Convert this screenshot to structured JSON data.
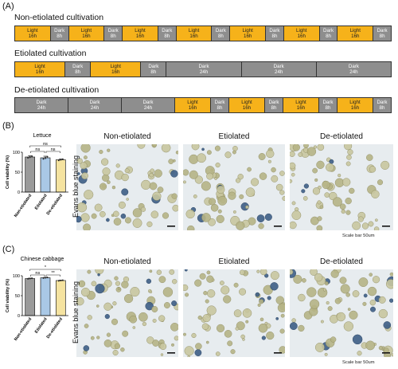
{
  "panelA": {
    "label": "(A)",
    "rows": [
      {
        "title": "Non-etiolated cultivation",
        "segments": [
          {
            "type": "light",
            "l1": "Light",
            "l2": "16h"
          },
          {
            "type": "dark",
            "l1": "Dark",
            "l2": "8h"
          },
          {
            "type": "light",
            "l1": "Light",
            "l2": "16h"
          },
          {
            "type": "dark",
            "l1": "Dark",
            "l2": "8h"
          },
          {
            "type": "light",
            "l1": "Light",
            "l2": "16h"
          },
          {
            "type": "dark",
            "l1": "Dark",
            "l2": "8h"
          },
          {
            "type": "light",
            "l1": "Light",
            "l2": "16h"
          },
          {
            "type": "dark",
            "l1": "Dark",
            "l2": "8h"
          },
          {
            "type": "light",
            "l1": "Light",
            "l2": "16h"
          },
          {
            "type": "dark",
            "l1": "Dark",
            "l2": "8h"
          },
          {
            "type": "light",
            "l1": "Light",
            "l2": "16h"
          },
          {
            "type": "dark",
            "l1": "Dark",
            "l2": "8h"
          },
          {
            "type": "light",
            "l1": "Light",
            "l2": "16h"
          },
          {
            "type": "dark",
            "l1": "Dark",
            "l2": "8h"
          }
        ]
      },
      {
        "title": "Etiolated cultivation",
        "segments": [
          {
            "type": "light",
            "l1": "Light",
            "l2": "16h"
          },
          {
            "type": "dark",
            "l1": "Dark",
            "l2": "8h"
          },
          {
            "type": "light",
            "l1": "Light",
            "l2": "16h"
          },
          {
            "type": "dark",
            "l1": "Dark",
            "l2": "8h"
          },
          {
            "type": "dark",
            "l1": "Dark",
            "l2": "24h"
          },
          {
            "type": "dark",
            "l1": "Dark",
            "l2": "24h"
          },
          {
            "type": "dark",
            "l1": "Dark",
            "l2": "24h"
          }
        ]
      },
      {
        "title": "De-etiolated cultivation",
        "segments": [
          {
            "type": "dark",
            "l1": "Dark",
            "l2": "24h"
          },
          {
            "type": "dark",
            "l1": "Dark",
            "l2": "24h"
          },
          {
            "type": "dark",
            "l1": "Dark",
            "l2": "24h"
          },
          {
            "type": "light",
            "l1": "Light",
            "l2": "16h"
          },
          {
            "type": "dark",
            "l1": "Dark",
            "l2": "8h"
          },
          {
            "type": "light",
            "l1": "Light",
            "l2": "16h"
          },
          {
            "type": "dark",
            "l1": "Dark",
            "l2": "8h"
          },
          {
            "type": "light",
            "l1": "Light",
            "l2": "16h"
          },
          {
            "type": "dark",
            "l1": "Dark",
            "l2": "8h"
          },
          {
            "type": "light",
            "l1": "Light",
            "l2": "16h"
          },
          {
            "type": "dark",
            "l1": "Dark",
            "l2": "8h"
          }
        ]
      }
    ]
  },
  "panelB": {
    "label": "(B)",
    "chart_title": "Lettuce",
    "stain_label": "Evans blue staining",
    "columns": [
      "Non-etiolated",
      "Etiolated",
      "De-etiolated"
    ],
    "scale": "Scale bar 50um"
  },
  "panelC": {
    "label": "(C)",
    "chart_title": "Chinese cabbage",
    "stain_label": "Evans blue staining",
    "columns": [
      "Non-etiolated",
      "Etiolated",
      "De-etiolated"
    ],
    "scale": "Scale bar 50um"
  },
  "chart_data": [
    {
      "type": "bar",
      "title": "Lettuce",
      "categories": [
        "Non-etiolated",
        "Etiolated",
        "De-etiolated"
      ],
      "values": [
        88,
        86,
        81
      ],
      "errors": [
        3,
        4,
        2
      ],
      "colors": [
        "#9a9a9a",
        "#a9c8e6",
        "#f5e3a0"
      ],
      "ylabel": "Cell viability (%)",
      "ylim": [
        0,
        100
      ],
      "yticks": [
        0,
        50,
        100
      ],
      "significance": [
        {
          "from": 0,
          "to": 1,
          "label": "ns"
        },
        {
          "from": 1,
          "to": 2,
          "label": "ns"
        },
        {
          "from": 0,
          "to": 2,
          "label": "ns"
        }
      ]
    },
    {
      "type": "bar",
      "title": "Chinese cabbage",
      "categories": [
        "Non-etiolated",
        "Etiolated",
        "De-etiolated"
      ],
      "values": [
        93,
        95,
        88
      ],
      "errors": [
        1,
        1,
        1
      ],
      "colors": [
        "#9a9a9a",
        "#a9c8e6",
        "#f5e3a0"
      ],
      "ylabel": "Cell viability (%)",
      "ylim": [
        0,
        100
      ],
      "yticks": [
        0,
        50,
        100
      ],
      "significance": [
        {
          "from": 0,
          "to": 1,
          "label": "ns"
        },
        {
          "from": 1,
          "to": 2,
          "label": "**"
        },
        {
          "from": 0,
          "to": 2,
          "label": "*"
        }
      ]
    }
  ]
}
